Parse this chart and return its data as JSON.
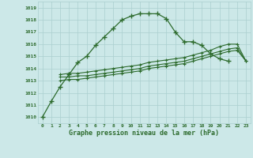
{
  "title": "Graphe pression niveau de la mer (hPa)",
  "bg_color": "#cce8e8",
  "grid_color": "#aacfcf",
  "line_color": "#2d6b2d",
  "x_labels": [
    "0",
    "1",
    "2",
    "3",
    "4",
    "5",
    "6",
    "7",
    "8",
    "9",
    "10",
    "11",
    "12",
    "13",
    "14",
    "15",
    "16",
    "17",
    "18",
    "19",
    "20",
    "21",
    "22",
    "23"
  ],
  "ylim": [
    1009.5,
    1019.5
  ],
  "yticks": [
    1010,
    1011,
    1012,
    1013,
    1014,
    1015,
    1016,
    1017,
    1018,
    1019
  ],
  "main_x": [
    0,
    1,
    2,
    3,
    4,
    5,
    6,
    7,
    8,
    9,
    10,
    11,
    12,
    13,
    14,
    15,
    16,
    17,
    18,
    19,
    20,
    21
  ],
  "main_y": [
    1010.0,
    1011.3,
    1012.5,
    1013.5,
    1014.5,
    1015.0,
    1015.9,
    1016.6,
    1017.3,
    1018.0,
    1018.3,
    1018.5,
    1018.5,
    1018.5,
    1018.1,
    1017.0,
    1016.2,
    1016.2,
    1015.9,
    1015.2,
    1014.8,
    1014.6
  ],
  "line2_x": [
    2,
    3,
    4,
    5,
    6,
    7,
    8,
    9,
    10,
    11,
    12,
    13,
    14,
    15,
    16,
    17,
    18,
    19,
    20,
    21,
    22,
    23
  ],
  "line2_y": [
    1013.5,
    1013.6,
    1013.6,
    1013.7,
    1013.8,
    1013.9,
    1014.0,
    1014.1,
    1014.2,
    1014.3,
    1014.5,
    1014.6,
    1014.7,
    1014.8,
    1014.9,
    1015.1,
    1015.3,
    1015.5,
    1015.8,
    1016.0,
    1016.0,
    1014.6
  ],
  "line3_x": [
    2,
    3,
    4,
    5,
    6,
    7,
    8,
    9,
    10,
    11,
    12,
    13,
    14,
    15,
    16,
    17,
    18,
    19,
    20,
    21,
    22,
    23
  ],
  "line3_y": [
    1013.3,
    1013.3,
    1013.4,
    1013.4,
    1013.5,
    1013.6,
    1013.7,
    1013.8,
    1013.9,
    1014.0,
    1014.2,
    1014.3,
    1014.4,
    1014.5,
    1014.6,
    1014.8,
    1015.0,
    1015.2,
    1015.4,
    1015.6,
    1015.7,
    1014.6
  ],
  "line4_x": [
    2,
    3,
    4,
    5,
    6,
    7,
    8,
    9,
    10,
    11,
    12,
    13,
    14,
    15,
    16,
    17,
    18,
    19,
    20,
    21,
    22,
    23
  ],
  "line4_y": [
    1013.0,
    1013.1,
    1013.1,
    1013.2,
    1013.3,
    1013.4,
    1013.5,
    1013.6,
    1013.7,
    1013.8,
    1014.0,
    1014.1,
    1014.2,
    1014.3,
    1014.4,
    1014.6,
    1014.8,
    1015.0,
    1015.2,
    1015.4,
    1015.5,
    1014.6
  ]
}
